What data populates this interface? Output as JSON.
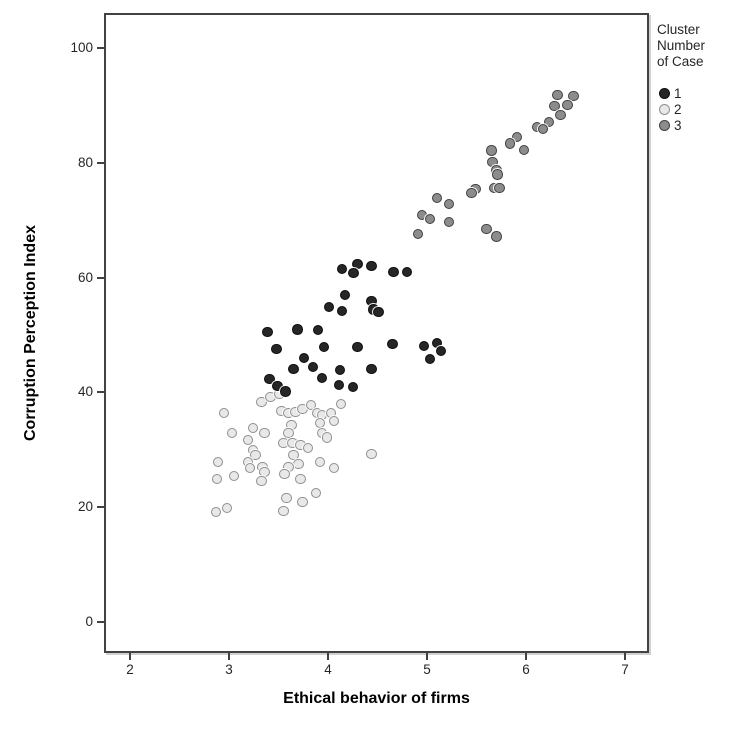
{
  "chart_data": {
    "type": "scatter",
    "title": "",
    "xlabel": "Ethical behavior of firms",
    "ylabel": "Corruption Perception Index",
    "x_ticks": [
      2,
      3,
      4,
      5,
      6,
      7
    ],
    "y_ticks": [
      0,
      20,
      40,
      60,
      80,
      100
    ],
    "xlim": [
      1.74,
      7.26
    ],
    "ylim": [
      -6,
      106
    ],
    "grid": false,
    "legend_position": "top-right-outside",
    "legend": {
      "title_lines": [
        "Cluster",
        "Number",
        "of Case"
      ],
      "entries": [
        {
          "label": "1",
          "fill": "#262626",
          "stroke": "#0d0d0d"
        },
        {
          "label": "2",
          "fill": "#e8e8e8",
          "stroke": "#8f8f8f"
        },
        {
          "label": "3",
          "fill": "#8c8c8c",
          "stroke": "#404040"
        }
      ]
    },
    "series": [
      {
        "name": "1",
        "points": [
          [
            4.14,
            61.5
          ],
          [
            4.3,
            62.4
          ],
          [
            4.26,
            60.8
          ],
          [
            4.44,
            62
          ],
          [
            4.66,
            61
          ],
          [
            4.8,
            61
          ],
          [
            4.17,
            57
          ],
          [
            4.44,
            55.9
          ],
          [
            4.01,
            54.9
          ],
          [
            4.14,
            54.2
          ],
          [
            4.46,
            54.4
          ],
          [
            4.51,
            54
          ],
          [
            3.39,
            50.5
          ],
          [
            3.69,
            51
          ],
          [
            3.9,
            50.9
          ],
          [
            3.48,
            47.6
          ],
          [
            3.96,
            47.9
          ],
          [
            4.3,
            47.9
          ],
          [
            4.65,
            48.4
          ],
          [
            4.97,
            48.1
          ],
          [
            5.1,
            48.6
          ],
          [
            5.14,
            47.2
          ],
          [
            5.03,
            45.8
          ],
          [
            3.76,
            46
          ],
          [
            3.65,
            44.1
          ],
          [
            3.85,
            44.4
          ],
          [
            3.94,
            42.5
          ],
          [
            4.12,
            43.9
          ],
          [
            4.44,
            44.1
          ],
          [
            3.41,
            42.3
          ],
          [
            3.49,
            41.1
          ],
          [
            3.57,
            40.2
          ],
          [
            4.11,
            41.3
          ],
          [
            4.25,
            40.9
          ]
        ]
      },
      {
        "name": "2",
        "points": [
          [
            3.33,
            38.3
          ],
          [
            3.42,
            39.2
          ],
          [
            3.51,
            39.7
          ],
          [
            2.95,
            36.4
          ],
          [
            3.53,
            36.8
          ],
          [
            3.6,
            36.4
          ],
          [
            3.67,
            36.6
          ],
          [
            3.74,
            37.1
          ],
          [
            3.83,
            37.8
          ],
          [
            3.89,
            36.4
          ],
          [
            3.94,
            36.1
          ],
          [
            4.03,
            36.4
          ],
          [
            4.13,
            38
          ],
          [
            4.06,
            35
          ],
          [
            3.92,
            34.7
          ],
          [
            3.94,
            32.9
          ],
          [
            3.99,
            32.1
          ],
          [
            3.03,
            32.9
          ],
          [
            3.24,
            33.8
          ],
          [
            3.36,
            32.9
          ],
          [
            3.19,
            31.7
          ],
          [
            3.63,
            34.3
          ],
          [
            3.6,
            32.9
          ],
          [
            3.55,
            31.2
          ],
          [
            3.64,
            31.2
          ],
          [
            3.72,
            30.8
          ],
          [
            3.8,
            30.3
          ],
          [
            3.24,
            30
          ],
          [
            3.27,
            29.1
          ],
          [
            3.19,
            27.9
          ],
          [
            3.21,
            26.8
          ],
          [
            2.89,
            27.9
          ],
          [
            2.88,
            24.9
          ],
          [
            3.05,
            25.4
          ],
          [
            3.34,
            27
          ],
          [
            3.36,
            26.1
          ],
          [
            3.33,
            24.6
          ],
          [
            3.65,
            29.1
          ],
          [
            3.7,
            27.5
          ],
          [
            3.6,
            27
          ],
          [
            3.56,
            25.8
          ],
          [
            3.72,
            24.9
          ],
          [
            3.92,
            27.9
          ],
          [
            4.06,
            26.8
          ],
          [
            4.44,
            29.3
          ],
          [
            3.88,
            22.5
          ],
          [
            3.58,
            21.6
          ],
          [
            3.74,
            20.9
          ],
          [
            3.55,
            19.3
          ],
          [
            2.87,
            19.2
          ],
          [
            2.98,
            19.9
          ]
        ]
      },
      {
        "name": "3",
        "points": [
          [
            6.32,
            91.8
          ],
          [
            6.48,
            91.6
          ],
          [
            6.29,
            89.9
          ],
          [
            6.42,
            90.1
          ],
          [
            6.35,
            88.3
          ],
          [
            6.23,
            87.1
          ],
          [
            6.11,
            86.2
          ],
          [
            6.17,
            85.9
          ],
          [
            5.91,
            84.5
          ],
          [
            5.84,
            83.4
          ],
          [
            5.98,
            82.2
          ],
          [
            5.65,
            82.1
          ],
          [
            5.66,
            80.1
          ],
          [
            5.7,
            78.7
          ],
          [
            5.71,
            78
          ],
          [
            5.68,
            75.6
          ],
          [
            5.73,
            75.6
          ],
          [
            5.49,
            75.4
          ],
          [
            5.45,
            74.7
          ],
          [
            5.1,
            73.9
          ],
          [
            5.22,
            72.8
          ],
          [
            4.95,
            70.9
          ],
          [
            5.03,
            70.2
          ],
          [
            5.22,
            69.7
          ],
          [
            4.91,
            67.6
          ],
          [
            5.6,
            68.5
          ],
          [
            5.7,
            67.2
          ]
        ]
      }
    ]
  }
}
